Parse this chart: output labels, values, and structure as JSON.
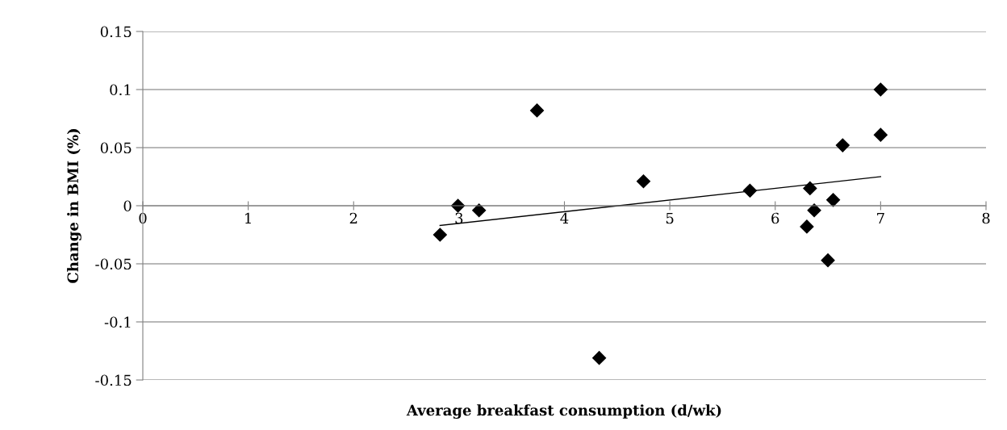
{
  "chart_data": {
    "type": "scatter",
    "xlabel": "Average breakfast consumption (d/wk)",
    "ylabel": "Change in BMI (%)",
    "xlim": [
      0,
      8
    ],
    "xticks": [
      0,
      1,
      2,
      3,
      4,
      5,
      6,
      7,
      8
    ],
    "ylim": [
      -0.15,
      0.15
    ],
    "yticks": [
      -0.15,
      -0.1,
      -0.05,
      0,
      0.05,
      0.1,
      0.15
    ],
    "grid": "y",
    "marker": "diamond",
    "series": [
      {
        "color": "#000000",
        "x": [
          2.82,
          2.99,
          3.19,
          3.74,
          4.33,
          4.75,
          5.76,
          6.33,
          6.37,
          6.3,
          6.55,
          6.5,
          6.64,
          7.0,
          7.0
        ],
        "values": [
          -0.025,
          0.0,
          -0.004,
          0.082,
          -0.131,
          0.021,
          0.013,
          0.015,
          -0.004,
          -0.018,
          0.005,
          -0.047,
          0.052,
          0.1,
          0.061
        ]
      },
      {
        "type": "line",
        "marker": "none",
        "color": "#000000",
        "x": [
          2.82,
          7.0
        ],
        "values": [
          -0.017,
          0.025
        ]
      }
    ]
  }
}
